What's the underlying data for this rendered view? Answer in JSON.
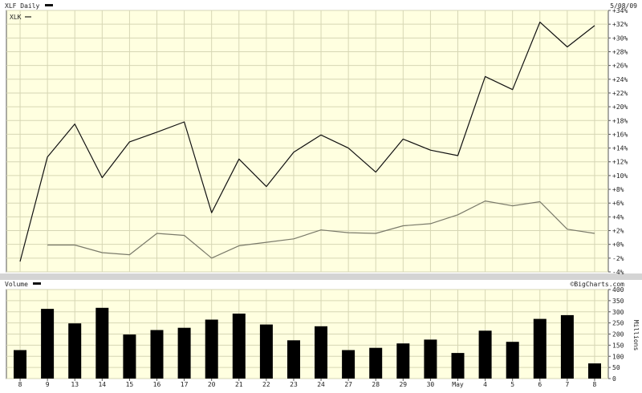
{
  "header": {
    "symbol_label": "XLF Daily",
    "date_label": "5/08/09",
    "compare_label": "XLK"
  },
  "volume_header": {
    "label": "Volume",
    "source_label": "©BigCharts.com",
    "unit_label": "Millions"
  },
  "colors": {
    "panel_bg": "#ffffe0",
    "grid": "#d6d6b4",
    "frame": "#555555",
    "separator": "#d4d4d4",
    "xlf_line": "#111111",
    "xlk_line": "#7a7a6a",
    "volume_bar": "#000000"
  },
  "chart_data": [
    {
      "type": "line",
      "title": "XLF Daily",
      "x": [
        "8",
        "9",
        "13",
        "14",
        "15",
        "16",
        "17",
        "20",
        "21",
        "22",
        "23",
        "24",
        "27",
        "28",
        "29",
        "30",
        "May",
        "4",
        "5",
        "6",
        "7",
        "8"
      ],
      "ylim": [
        -4,
        34
      ],
      "yticks": [
        "-4%",
        "-2%",
        "+0%",
        "+2%",
        "+4%",
        "+6%",
        "+8%",
        "+10%",
        "+12%",
        "+14%",
        "+16%",
        "+18%",
        "+20%",
        "+22%",
        "+24%",
        "+26%",
        "+28%",
        "+30%",
        "+32%",
        "+34%"
      ],
      "grid": true,
      "series": [
        {
          "name": "XLF Daily",
          "values": [
            -2.5,
            12.7,
            17.5,
            9.7,
            14.9,
            16.3,
            17.8,
            4.6,
            12.4,
            8.4,
            13.4,
            15.9,
            14.0,
            10.5,
            15.3,
            13.7,
            12.9,
            24.4,
            22.5,
            32.3,
            28.7,
            31.8
          ]
        },
        {
          "name": "XLK",
          "values": [
            null,
            -0.1,
            -0.1,
            -1.2,
            -1.5,
            1.6,
            1.3,
            -2.0,
            -0.2,
            0.3,
            0.8,
            2.1,
            1.7,
            1.6,
            2.7,
            3.0,
            4.3,
            6.3,
            5.6,
            6.2,
            2.2,
            1.6
          ]
        }
      ]
    },
    {
      "type": "bar",
      "title": "Volume",
      "categories": [
        "8",
        "9",
        "13",
        "14",
        "15",
        "16",
        "17",
        "20",
        "21",
        "22",
        "23",
        "24",
        "27",
        "28",
        "29",
        "30",
        "May",
        "4",
        "5",
        "6",
        "7",
        "8"
      ],
      "values": [
        128,
        313,
        248,
        318,
        198,
        218,
        228,
        265,
        292,
        243,
        172,
        235,
        128,
        138,
        158,
        175,
        115,
        215,
        165,
        268,
        285,
        68
      ],
      "ylim": [
        0,
        400
      ],
      "yticks": [
        "0",
        "50",
        "100",
        "150",
        "200",
        "250",
        "300",
        "350",
        "400"
      ],
      "ylabel": "Millions",
      "grid": true
    }
  ]
}
